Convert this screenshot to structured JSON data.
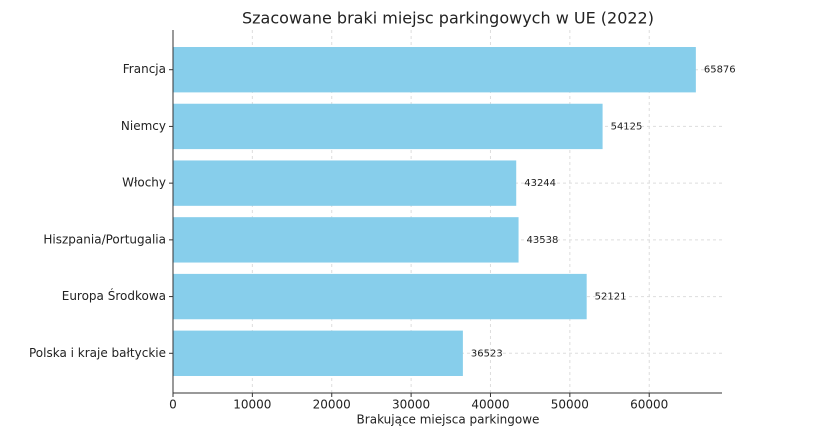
{
  "chart_data": {
    "type": "barh",
    "title": "Szacowane braki miejsc parkingowych w UE (2022)",
    "xlabel": "Brakujące miejsca parkingowe",
    "categories": [
      "Francja",
      "Niemcy",
      "Włochy",
      "Hiszpania/Portugalia",
      "Europa Środkowa",
      "Polska i kraje bałtyckie"
    ],
    "values": [
      65876,
      54125,
      43244,
      43538,
      52121,
      36523
    ],
    "color": "#87ceeb",
    "xlim": [
      0,
      69170
    ],
    "xticks": [
      0,
      10000,
      20000,
      30000,
      40000,
      50000,
      60000
    ],
    "grid": true
  }
}
